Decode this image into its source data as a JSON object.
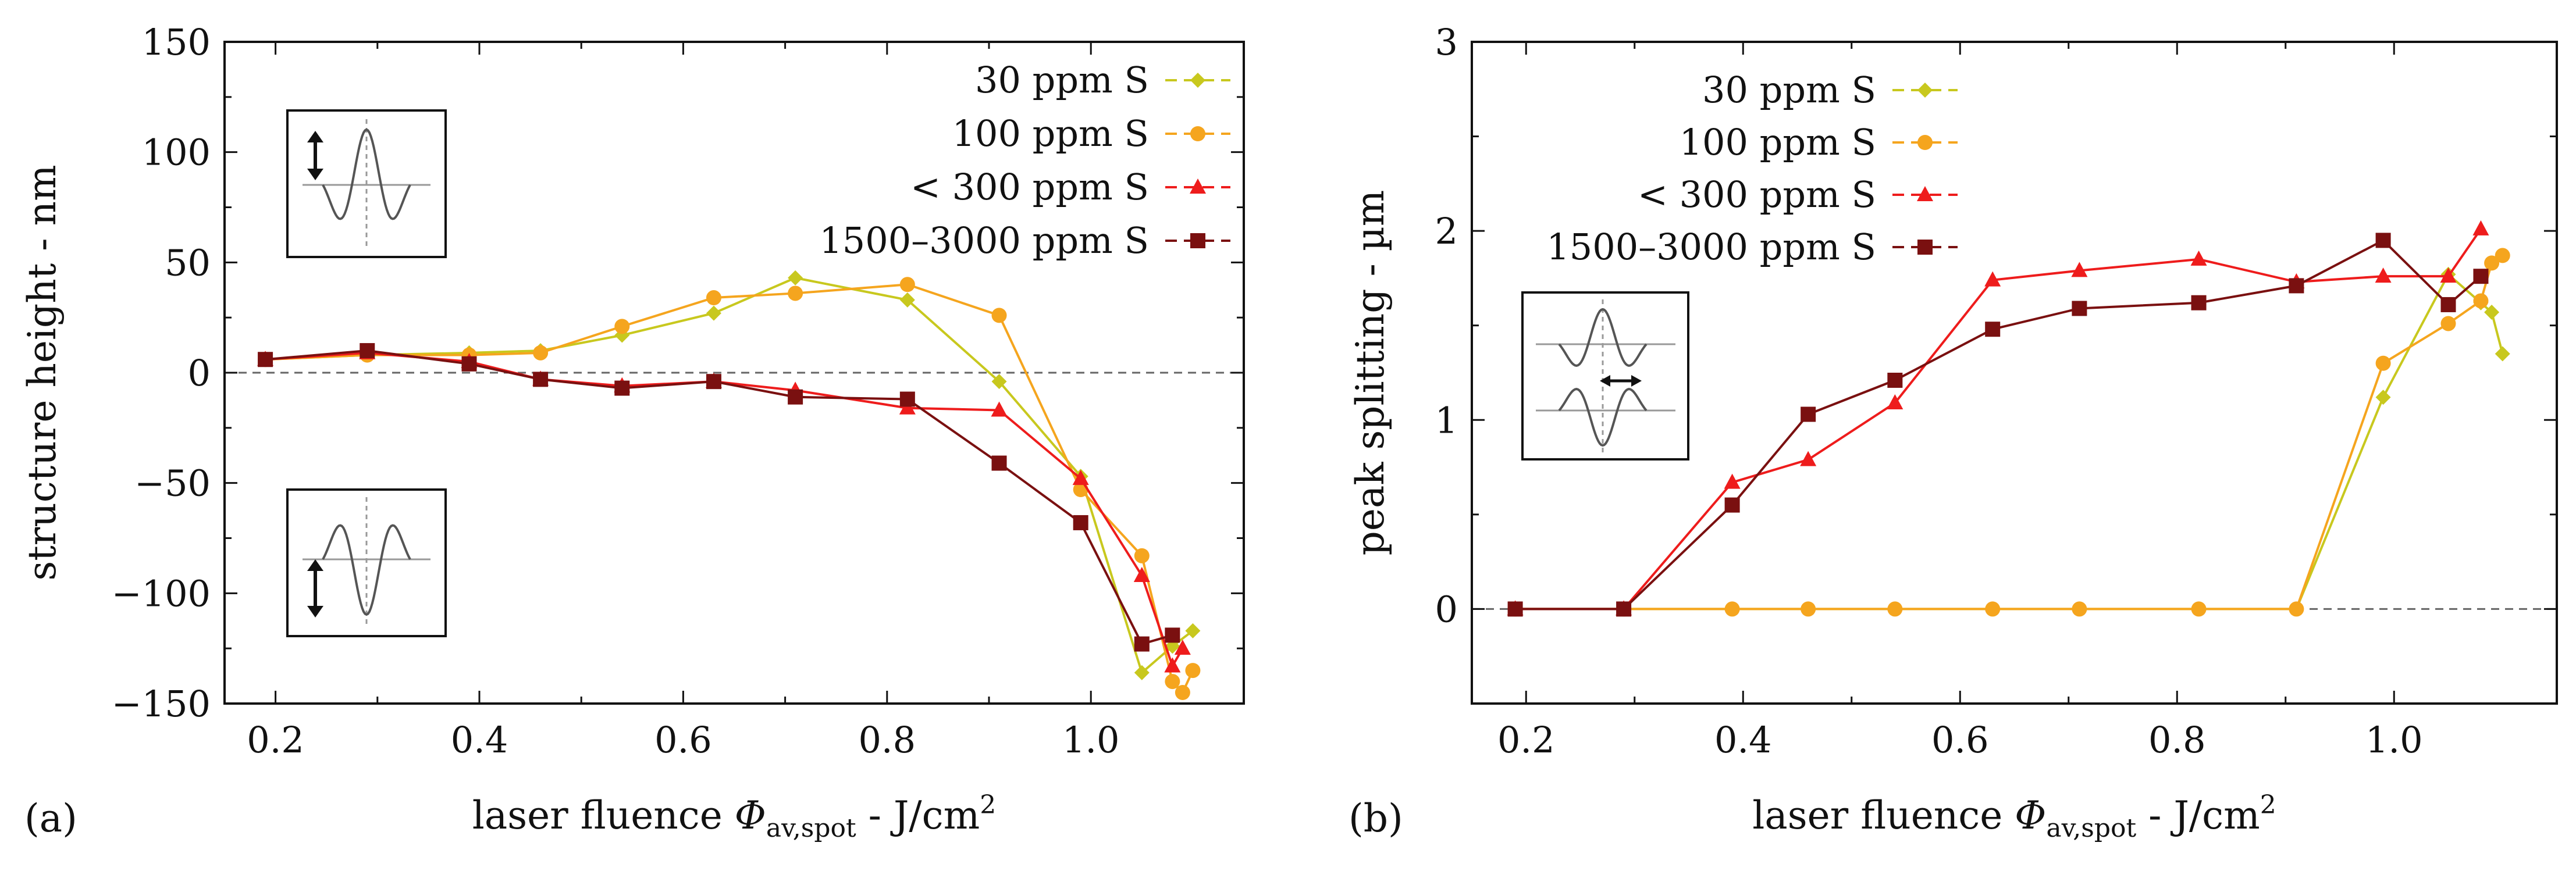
{
  "charts": [
    {
      "panel_label": "(a)",
      "xlabel": "laser fluence Φav,spot - J/cm²",
      "xlabel_parts": {
        "main": "laser fluence ",
        "phi": "Φ",
        "sub": "av,spot",
        "rest": " - J/cm",
        "sup": "2"
      },
      "ylabel": "structure height - nm",
      "inset": "height-sketch"
    },
    {
      "panel_label": "(b)",
      "xlabel": "laser fluence Φav,spot - J/cm²",
      "xlabel_parts": {
        "main": "laser fluence ",
        "phi": "Φ",
        "sub": "av,spot",
        "rest": " - J/cm",
        "sup": "2"
      },
      "ylabel": "peak splitting - µm",
      "inset": "splitting-sketch"
    }
  ],
  "legend": [
    {
      "name": "30 ppm S",
      "color": "#c8c81e",
      "marker": "diamond"
    },
    {
      "name": "100 ppm S",
      "color": "#f5a51e",
      "marker": "circle"
    },
    {
      "name": "< 300 ppm S",
      "color": "#ee1c1c",
      "marker": "triangle"
    },
    {
      "name": "1500–3000 ppm S",
      "color": "#7a1010",
      "marker": "square"
    }
  ],
  "chart_data": [
    {
      "type": "line",
      "title": "",
      "xlabel": "laser fluence Φav,spot - J/cm²",
      "ylabel": "structure height - nm",
      "xlim": [
        0.15,
        1.15
      ],
      "ylim": [
        -150,
        150
      ],
      "xticks": [
        "0.2",
        "0.4",
        "0.6",
        "0.8",
        "1.0"
      ],
      "xtick_values": [
        0.2,
        0.4,
        0.6,
        0.8,
        1.0
      ],
      "yticks": [
        "−150",
        "−100",
        "−50",
        "0",
        "50",
        "100",
        "150"
      ],
      "ytick_values": [
        -150,
        -100,
        -50,
        0,
        50,
        100,
        150
      ],
      "zero_line": true,
      "series": [
        {
          "name": "30 ppm S",
          "x": [
            0.19,
            0.29,
            0.39,
            0.46,
            0.54,
            0.63,
            0.71,
            0.82,
            0.91,
            0.99,
            1.05,
            1.08,
            1.1
          ],
          "y": [
            6,
            8,
            9,
            10,
            17,
            27,
            43,
            33,
            -4,
            -47,
            -136,
            -124,
            -117
          ]
        },
        {
          "name": "100 ppm S",
          "x": [
            0.19,
            0.29,
            0.39,
            0.46,
            0.54,
            0.63,
            0.71,
            0.82,
            0.91,
            0.99,
            1.05,
            1.08,
            1.09,
            1.1
          ],
          "y": [
            6,
            8,
            8,
            9,
            21,
            34,
            36,
            40,
            26,
            -53,
            -83,
            -140,
            -145,
            -135
          ]
        },
        {
          "name": "< 300 ppm S",
          "x": [
            0.19,
            0.29,
            0.39,
            0.46,
            0.54,
            0.63,
            0.71,
            0.82,
            0.91,
            0.99,
            1.05,
            1.08,
            1.09
          ],
          "y": [
            6,
            9,
            5,
            -3,
            -6,
            -4,
            -8,
            -16,
            -17,
            -48,
            -92,
            -133,
            -125
          ]
        },
        {
          "name": "1500–3000 ppm S",
          "x": [
            0.19,
            0.29,
            0.39,
            0.46,
            0.54,
            0.63,
            0.71,
            0.82,
            0.91,
            0.99,
            1.05,
            1.08
          ],
          "y": [
            6,
            10,
            4,
            -3,
            -7,
            -4,
            -11,
            -12,
            -41,
            -68,
            -123,
            -119
          ]
        }
      ]
    },
    {
      "type": "line",
      "title": "",
      "xlabel": "laser fluence Φav,spot - J/cm²",
      "ylabel": "peak splitting - µm",
      "xlim": [
        0.15,
        1.15
      ],
      "ylim": [
        -0.5,
        3
      ],
      "xticks": [
        "0.2",
        "0.4",
        "0.6",
        "0.8",
        "1.0"
      ],
      "xtick_values": [
        0.2,
        0.4,
        0.6,
        0.8,
        1.0
      ],
      "yticks": [
        "0",
        "1",
        "2",
        "3"
      ],
      "ytick_values": [
        0,
        1,
        2,
        3
      ],
      "zero_line": true,
      "series": [
        {
          "name": "30 ppm S",
          "x": [
            0.19,
            0.29,
            0.39,
            0.46,
            0.54,
            0.63,
            0.71,
            0.82,
            0.91,
            0.99,
            1.05,
            1.08,
            1.09,
            1.1
          ],
          "y": [
            0,
            0,
            0,
            0,
            0,
            0,
            0,
            0,
            0,
            1.12,
            1.77,
            1.62,
            1.57,
            1.35
          ]
        },
        {
          "name": "100 ppm S",
          "x": [
            0.19,
            0.29,
            0.39,
            0.46,
            0.54,
            0.63,
            0.71,
            0.82,
            0.91,
            0.99,
            1.05,
            1.08,
            1.09,
            1.1
          ],
          "y": [
            0,
            0,
            0,
            0,
            0,
            0,
            0,
            0,
            0,
            1.3,
            1.51,
            1.63,
            1.83,
            1.87
          ]
        },
        {
          "name": "< 300 ppm S",
          "x": [
            0.19,
            0.29,
            0.39,
            0.46,
            0.54,
            0.63,
            0.71,
            0.82,
            0.91,
            0.99,
            1.05,
            1.08
          ],
          "y": [
            0,
            0,
            0.67,
            0.79,
            1.09,
            1.74,
            1.79,
            1.85,
            1.73,
            1.76,
            1.76,
            2.01
          ]
        },
        {
          "name": "1500–3000 ppm S",
          "x": [
            0.19,
            0.29,
            0.39,
            0.46,
            0.54,
            0.63,
            0.71,
            0.82,
            0.91,
            0.99,
            1.05,
            1.08
          ],
          "y": [
            0,
            0,
            0.55,
            1.03,
            1.21,
            1.48,
            1.59,
            1.62,
            1.71,
            1.95,
            1.61,
            1.76
          ]
        }
      ]
    }
  ]
}
